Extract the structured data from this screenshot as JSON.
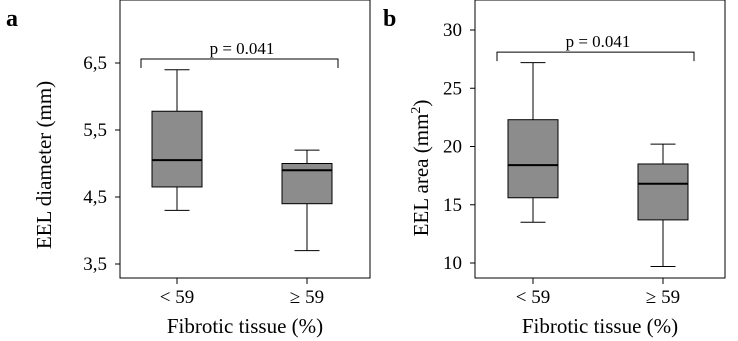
{
  "chart_data": [
    {
      "type": "box",
      "panel_label": "a",
      "categories": [
        "< 59",
        "≥ 59"
      ],
      "xlabel": "Fibrotic tissue (%)",
      "ylabel": "EEL diameter (mm)",
      "ylim": [
        3.4,
        7.0
      ],
      "yticks": [
        3.5,
        4.5,
        5.5,
        6.5
      ],
      "ytick_labels": [
        "3,5",
        "4,5",
        "5,5",
        "6,5"
      ],
      "boxes": [
        {
          "min": 4.3,
          "q1": 4.65,
          "median": 5.05,
          "q3": 5.78,
          "max": 6.4
        },
        {
          "min": 3.7,
          "q1": 4.4,
          "median": 4.9,
          "q3": 5.0,
          "max": 5.2
        }
      ],
      "annotation": "p = 0.041",
      "bracket_y": 6.56
    },
    {
      "type": "box",
      "panel_label": "b",
      "categories": [
        "< 59",
        "≥ 59"
      ],
      "xlabel": "Fibrotic tissue (%)",
      "ylabel": "EEL area (mm",
      "ylabel_superscript": "2",
      "ylabel_suffix": ")",
      "ylim": [
        9,
        31
      ],
      "yticks": [
        10,
        15,
        20,
        25,
        30
      ],
      "ytick_labels": [
        "10",
        "15",
        "20",
        "25",
        "30"
      ],
      "boxes": [
        {
          "min": 13.5,
          "q1": 15.6,
          "median": 18.4,
          "q3": 22.3,
          "max": 27.2
        },
        {
          "min": 9.7,
          "q1": 13.7,
          "median": 16.8,
          "q3": 18.5,
          "max": 20.2
        }
      ],
      "annotation": "p = 0.041",
      "bracket_y": 28.1
    }
  ]
}
